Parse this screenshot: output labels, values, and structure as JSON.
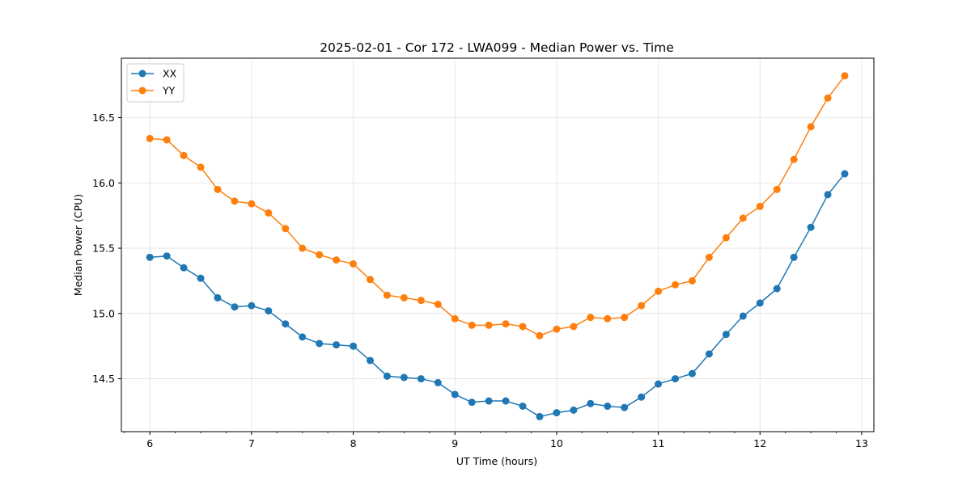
{
  "chart_data": {
    "type": "line",
    "title": "2025-02-01 - Cor 172 - LWA099 - Median Power vs. Time",
    "xlabel": "UT Time (hours)",
    "ylabel": "Median Power (CPU)",
    "xlim": [
      5.72,
      13.12
    ],
    "ylim": [
      14.095,
      16.955
    ],
    "x_ticks": [
      6,
      7,
      8,
      9,
      10,
      11,
      12,
      13
    ],
    "x_tick_labels": [
      "6",
      "7",
      "8",
      "9",
      "10",
      "11",
      "12",
      "13"
    ],
    "y_ticks": [
      14.5,
      15.0,
      15.5,
      16.0,
      16.5
    ],
    "y_tick_labels": [
      "14.5",
      "15.0",
      "15.5",
      "16.0",
      "16.5"
    ],
    "grid": true,
    "legend_position": "top-left",
    "x": [
      6.0,
      6.1667,
      6.3333,
      6.5,
      6.6667,
      6.8333,
      7.0,
      7.1667,
      7.3333,
      7.5,
      7.6667,
      7.8333,
      8.0,
      8.1667,
      8.3333,
      8.5,
      8.6667,
      8.8333,
      9.0,
      9.1667,
      9.3333,
      9.5,
      9.6667,
      9.8333,
      10.0,
      10.1667,
      10.3333,
      10.5,
      10.6667,
      10.8333,
      11.0,
      11.1667,
      11.3333,
      11.5,
      11.6667,
      11.8333,
      12.0,
      12.1667,
      12.3333,
      12.5,
      12.6667,
      12.8333
    ],
    "series": [
      {
        "name": "XX",
        "color": "#1f77b4",
        "values": [
          15.43,
          15.44,
          15.35,
          15.27,
          15.12,
          15.05,
          15.06,
          15.02,
          14.92,
          14.82,
          14.77,
          14.76,
          14.75,
          14.64,
          14.52,
          14.51,
          14.5,
          14.47,
          14.38,
          14.32,
          14.33,
          14.33,
          14.29,
          14.21,
          14.24,
          14.26,
          14.31,
          14.29,
          14.28,
          14.36,
          14.46,
          14.5,
          14.54,
          14.69,
          14.84,
          14.98,
          15.08,
          15.19,
          15.43,
          15.66,
          15.91,
          16.07
        ]
      },
      {
        "name": "YY",
        "color": "#ff7f0e",
        "values": [
          16.34,
          16.33,
          16.21,
          16.12,
          15.95,
          15.86,
          15.84,
          15.77,
          15.65,
          15.5,
          15.45,
          15.41,
          15.38,
          15.26,
          15.14,
          15.12,
          15.1,
          15.07,
          14.96,
          14.91,
          14.91,
          14.92,
          14.9,
          14.83,
          14.88,
          14.9,
          14.97,
          14.96,
          14.97,
          15.06,
          15.17,
          15.22,
          15.25,
          15.43,
          15.58,
          15.73,
          15.82,
          15.95,
          16.18,
          16.43,
          16.65,
          16.82
        ]
      }
    ]
  }
}
